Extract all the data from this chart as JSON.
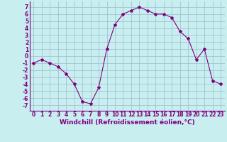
{
  "x": [
    0,
    1,
    2,
    3,
    4,
    5,
    6,
    7,
    8,
    9,
    10,
    11,
    12,
    13,
    14,
    15,
    16,
    17,
    18,
    19,
    20,
    21,
    22,
    23
  ],
  "y": [
    -1,
    -0.5,
    -1,
    -1.5,
    -2.5,
    -4,
    -6.5,
    -6.8,
    -4.5,
    1,
    4.5,
    6,
    6.5,
    7,
    6.5,
    6,
    6,
    5.5,
    3.5,
    2.5,
    -0.5,
    1,
    -3.5,
    -4
  ],
  "line_color": "#800080",
  "marker": "*",
  "marker_size": 3,
  "bg_color": "#c8eef0",
  "grid_color": "#99bbcc",
  "xlabel": "Windchill (Refroidissement éolien,°C)",
  "xlabel_fontsize": 6.5,
  "xtick_labels": [
    "0",
    "1",
    "2",
    "3",
    "4",
    "5",
    "6",
    "7",
    "8",
    "9",
    "10",
    "11",
    "12",
    "13",
    "14",
    "15",
    "16",
    "17",
    "18",
    "19",
    "20",
    "21",
    "22",
    "23"
  ],
  "ytick_values": [
    -7,
    -6,
    -5,
    -4,
    -3,
    -2,
    -1,
    0,
    1,
    2,
    3,
    4,
    5,
    6,
    7
  ],
  "ylim": [
    -7.8,
    7.8
  ],
  "xlim": [
    -0.5,
    23.5
  ],
  "tick_fontsize": 5.5
}
